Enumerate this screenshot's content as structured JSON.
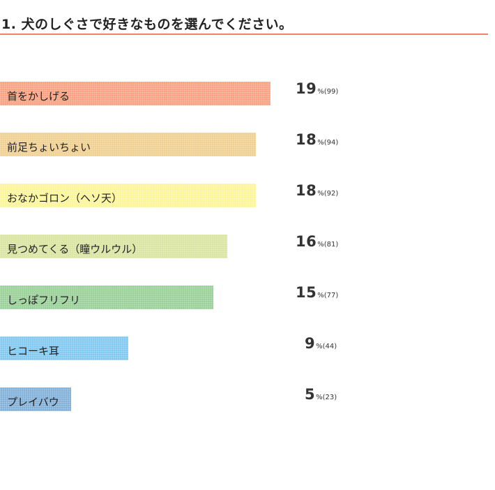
{
  "header": {
    "title": "1. 犬のしぐさで好きなものを選んでください。"
  },
  "chart_data": {
    "type": "bar",
    "orientation": "horizontal",
    "title": "1. 犬のしぐさで好きなものを選んでください。",
    "categories": [
      "首をかしげる",
      "前足ちょいちょい",
      "おなかゴロン（ヘソ天）",
      "見つめてくる（瞳ウルウル）",
      "しっぽフリフリ",
      "ヒコーキ耳",
      "プレイバウ"
    ],
    "values": [
      19,
      18,
      18,
      16,
      15,
      9,
      5
    ],
    "counts": [
      "(99)",
      "(94)",
      "(92)",
      "(81)",
      "(77)",
      "(44)",
      "(23)"
    ],
    "unit": "%",
    "colors": [
      "#f8a080",
      "#f0d090",
      "#fbf59a",
      "#d8e4a0",
      "#98d098",
      "#80c8f0",
      "#80b0d8"
    ],
    "xlim": [
      0,
      100
    ]
  }
}
